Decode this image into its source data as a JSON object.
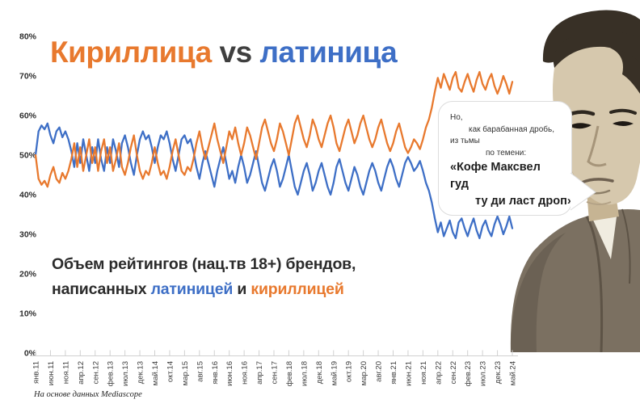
{
  "title": {
    "cyrillic_word": "Кириллица",
    "vs": " vs ",
    "latin_word": "латиница"
  },
  "colors": {
    "cyrillic_orange": "#E8792E",
    "latin_blue": "#3E6FC6",
    "vs_dark": "#3f3f3f",
    "axis_line": "#d0d0d0",
    "tick_text": "#3c3c3c"
  },
  "subtitle": {
    "line1": "Объем рейтингов (нац.тв 18+) брендов,",
    "line2_pre": "написанных ",
    "line2_latin": "латиницей",
    "line2_mid": " и ",
    "line2_cyrillic": "кириллицей"
  },
  "bubble": {
    "lines": [
      {
        "text": "Но,",
        "style": "s",
        "indent": 0
      },
      {
        "text": "как барабанная дробь,",
        "style": "s",
        "indent": 23
      },
      {
        "text": "из тьмы",
        "style": "s",
        "indent": 0
      },
      {
        "text": "по темени:",
        "style": "s",
        "indent": 44
      },
      {
        "text": "«Кофе Максвел",
        "style": "b",
        "indent": 0
      },
      {
        "text": "гуд",
        "style": "b",
        "indent": 0
      },
      {
        "text": "ту ди ласт дроп»",
        "style": "b",
        "indent": 31
      }
    ]
  },
  "footer": "На основе данных Mediascope",
  "chart_data": {
    "type": "line",
    "x_unit": "month",
    "x_range": [
      "янв.11",
      "май.24"
    ],
    "tick_every_months": 5,
    "x_tick_labels": [
      "янв.11",
      "июн.11",
      "ноя.11",
      "апр.12",
      "сен.12",
      "фев.13",
      "июл.13",
      "дек.13",
      "май.14",
      "окт.14",
      "мар.15",
      "авг.15",
      "янв.16",
      "июн.16",
      "ноя.16",
      "апр.17",
      "сен.17",
      "фев.18",
      "июл.18",
      "дек.18",
      "май.19",
      "окт.19",
      "мар.20",
      "авг.20",
      "янв.21",
      "июн.21",
      "ноя.21",
      "апр.22",
      "сен.22",
      "фев.23",
      "июл.23",
      "дек.23",
      "май.24"
    ],
    "y_tick_labels": [
      "0%",
      "10%",
      "20%",
      "30%",
      "40%",
      "50%",
      "60%",
      "70%",
      "80%"
    ],
    "ylim": [
      0,
      80
    ],
    "grid": false,
    "legend": "none (colors referenced in title and subtitle)",
    "series": [
      {
        "name": "латиница",
        "color": "#3E6FC6",
        "values": [
          50,
          56,
          57.5,
          56.5,
          58,
          55,
          53,
          56,
          57,
          54.5,
          56,
          54,
          51,
          47,
          53,
          48,
          54,
          50,
          46,
          52,
          48,
          54,
          49,
          46,
          52,
          48,
          54,
          51,
          47,
          53,
          55,
          52,
          48,
          45,
          50,
          54,
          56,
          54,
          55,
          52,
          48,
          52,
          55,
          54,
          56,
          53,
          49,
          46,
          50,
          54,
          55,
          53,
          54,
          51,
          47,
          44,
          48,
          51,
          48,
          45,
          42,
          46,
          49,
          52,
          48,
          44,
          46,
          43,
          47,
          50,
          47,
          43,
          45,
          48,
          51,
          47,
          43,
          41,
          44,
          47,
          49,
          46,
          42,
          44,
          47,
          50,
          46,
          42,
          40,
          43,
          46,
          48,
          45,
          41,
          43,
          46,
          48,
          45,
          42,
          40,
          43,
          47,
          49,
          46,
          43,
          41,
          44,
          47,
          45,
          42,
          40,
          43,
          46,
          48,
          46,
          43,
          41,
          44,
          47,
          49,
          47,
          44,
          42,
          45,
          48,
          49.5,
          48,
          46,
          47,
          48.5,
          46,
          43,
          41,
          38,
          34,
          30.5,
          33,
          29.5,
          31.5,
          33.5,
          30.5,
          29,
          33,
          34,
          31.5,
          29.5,
          32,
          34,
          31,
          29,
          32,
          33.5,
          31,
          29.5,
          32.5,
          34.5,
          32.5,
          30,
          32,
          34.5,
          31.5
        ]
      },
      {
        "name": "кириллица",
        "color": "#E8792E",
        "values": [
          50,
          44,
          42.5,
          43.5,
          42,
          45,
          47,
          44,
          43,
          45.5,
          44,
          46,
          49,
          53,
          47,
          52,
          46,
          50,
          54,
          48,
          52,
          46,
          51,
          54,
          48,
          52,
          46,
          49,
          53,
          47,
          45,
          48,
          52,
          55,
          50,
          46,
          44,
          46,
          45,
          48,
          52,
          48,
          45,
          46,
          44,
          47,
          51,
          54,
          50,
          46,
          45,
          47,
          46,
          49,
          53,
          56,
          52,
          49,
          52,
          55,
          58,
          54,
          51,
          48,
          52,
          56,
          54,
          57,
          53,
          50,
          53,
          57,
          55,
          52,
          49,
          53,
          57,
          59,
          56,
          53,
          51,
          54,
          58,
          56,
          53,
          50,
          54,
          58,
          60,
          57,
          54,
          52,
          55,
          59,
          57,
          54,
          52,
          55,
          58,
          60,
          57,
          53,
          51,
          54,
          57,
          59,
          56,
          53,
          55,
          58,
          60,
          57,
          54,
          52,
          54,
          57,
          59,
          56,
          53,
          51,
          53,
          56,
          58,
          55,
          52,
          50.5,
          52,
          54,
          53,
          51.5,
          54,
          57,
          59,
          62,
          66,
          69.5,
          67,
          70.5,
          68.5,
          66.5,
          69.5,
          71,
          67,
          66,
          68.5,
          70.5,
          68,
          66,
          69,
          71,
          68,
          66.5,
          69,
          70.5,
          67.5,
          65.5,
          67.5,
          70,
          68,
          65.5,
          68.5
        ]
      }
    ]
  }
}
